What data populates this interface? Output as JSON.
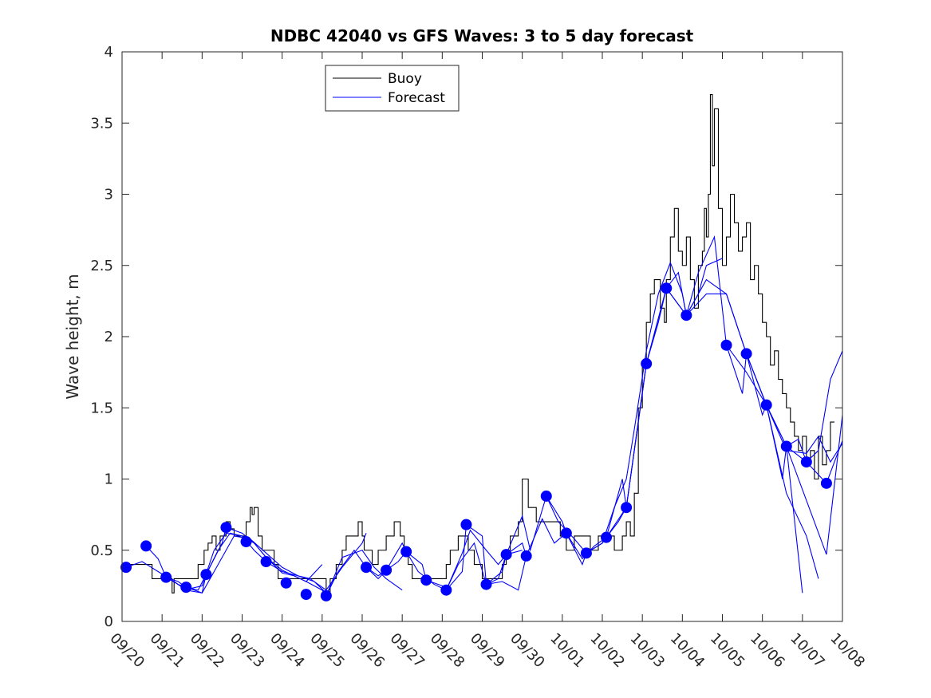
{
  "chart_data": {
    "type": "line",
    "title": "NDBC 42040 vs GFS Waves: 3 to 5 day forecast",
    "xlabel": "",
    "ylabel": "Wave height, m",
    "xlim_days": [
      0,
      18
    ],
    "ylim": [
      0,
      4
    ],
    "yticks": [
      0,
      0.5,
      1,
      1.5,
      2,
      2.5,
      3,
      3.5,
      4
    ],
    "ytick_labels": [
      "0",
      "0.5",
      "1",
      "1.5",
      "2",
      "2.5",
      "3",
      "3.5",
      "4"
    ],
    "xtick_labels": [
      "09/20",
      "09/21",
      "09/22",
      "09/23",
      "09/24",
      "09/25",
      "09/26",
      "09/27",
      "09/28",
      "09/29",
      "09/30",
      "10/01",
      "10/02",
      "10/03",
      "10/04",
      "10/05",
      "10/06",
      "10/07",
      "10/08"
    ],
    "grid": false,
    "legend": {
      "position": "top-center-left",
      "entries": [
        {
          "label": "Buoy",
          "color": "#000000"
        },
        {
          "label": "Forecast",
          "color": "#0000ff"
        }
      ]
    },
    "series": [
      {
        "name": "Buoy",
        "color": "#000000",
        "style": "stairs",
        "x_days": [
          0,
          0.6,
          0.75,
          1.2,
          1.25,
          1.3,
          1.5,
          1.9,
          2.05,
          2.15,
          2.25,
          2.35,
          2.45,
          2.6,
          2.7,
          2.8,
          2.9,
          3.0,
          3.1,
          3.2,
          3.25,
          3.3,
          3.4,
          3.5,
          3.6,
          3.8,
          3.9,
          4.1,
          4.3,
          4.6,
          4.8,
          5.0,
          5.1,
          5.2,
          5.35,
          5.5,
          5.6,
          5.8,
          5.9,
          6.0,
          6.05,
          6.1,
          6.25,
          6.4,
          6.6,
          6.8,
          6.95,
          7.05,
          7.15,
          7.25,
          7.4,
          7.6,
          7.8,
          8.0,
          8.1,
          8.2,
          8.4,
          8.5,
          8.65,
          8.8,
          9.0,
          9.2,
          9.4,
          9.5,
          9.6,
          9.7,
          9.8,
          9.9,
          10.0,
          10.15,
          10.35,
          10.55,
          10.75,
          10.95,
          11.1,
          11.3,
          11.5,
          11.7,
          11.9,
          12.1,
          12.3,
          12.5,
          12.6,
          12.7,
          12.8,
          12.9,
          13.0,
          13.1,
          13.2,
          13.3,
          13.45,
          13.55,
          13.6,
          13.7,
          13.8,
          13.9,
          14.0,
          14.1,
          14.2,
          14.3,
          14.4,
          14.5,
          14.55,
          14.6,
          14.65,
          14.7,
          14.75,
          14.8,
          14.9,
          15.0,
          15.1,
          15.2,
          15.3,
          15.4,
          15.5,
          15.6,
          15.7,
          15.8,
          15.9,
          16.0,
          16.1,
          16.2,
          16.3,
          16.4,
          16.5,
          16.6,
          16.7,
          16.8,
          16.9,
          17.0,
          17.1,
          17.2,
          17.3,
          17.4,
          17.5,
          17.6,
          17.7
        ],
        "values": [
          0.4,
          0.4,
          0.3,
          0.3,
          0.2,
          0.3,
          0.3,
          0.4,
          0.5,
          0.55,
          0.6,
          0.5,
          0.6,
          0.7,
          0.65,
          0.6,
          0.6,
          0.6,
          0.7,
          0.8,
          0.75,
          0.8,
          0.6,
          0.5,
          0.5,
          0.4,
          0.3,
          0.3,
          0.3,
          0.3,
          0.3,
          0.3,
          0.2,
          0.3,
          0.4,
          0.5,
          0.6,
          0.6,
          0.7,
          0.6,
          0.5,
          0.5,
          0.4,
          0.5,
          0.6,
          0.7,
          0.6,
          0.5,
          0.4,
          0.3,
          0.3,
          0.3,
          0.3,
          0.3,
          0.4,
          0.5,
          0.6,
          0.6,
          0.5,
          0.4,
          0.3,
          0.3,
          0.3,
          0.4,
          0.5,
          0.6,
          0.6,
          0.7,
          1.0,
          0.8,
          0.7,
          0.7,
          0.7,
          0.6,
          0.5,
          0.6,
          0.6,
          0.5,
          0.6,
          0.6,
          0.5,
          0.6,
          0.7,
          0.6,
          0.9,
          1.5,
          1.8,
          2.1,
          2.3,
          2.4,
          2.2,
          2.1,
          2.4,
          2.7,
          2.9,
          2.6,
          2.5,
          2.7,
          2.4,
          2.2,
          2.5,
          2.6,
          2.9,
          2.7,
          3.0,
          3.7,
          3.2,
          3.6,
          2.9,
          2.5,
          2.7,
          3.0,
          2.8,
          2.6,
          2.7,
          2.8,
          2.4,
          2.5,
          2.3,
          2.1,
          2.0,
          1.8,
          1.9,
          1.7,
          1.6,
          1.5,
          1.4,
          1.3,
          1.2,
          1.3,
          1.1,
          1.2,
          1.0,
          1.3,
          1.1,
          1.2,
          1.4
        ]
      },
      {
        "name": "Forecast",
        "color": "#0000ff",
        "style": "lines",
        "runs": [
          {
            "x_days": [
              0.1,
              0.5,
              0.9,
              1.3,
              1.6,
              2.0,
              2.4,
              2.8,
              3.2,
              3.6,
              4.0,
              4.4,
              4.8,
              5.1
            ],
            "values": [
              0.38,
              0.42,
              0.35,
              0.28,
              0.22,
              0.2,
              0.4,
              0.6,
              0.58,
              0.48,
              0.38,
              0.32,
              0.28,
              0.2
            ]
          },
          {
            "x_days": [
              0.6,
              0.9,
              1.1,
              1.4,
              1.7,
              2.0,
              2.3,
              2.6,
              3.0,
              3.3,
              3.6,
              4.0,
              4.3,
              4.6,
              5.0
            ],
            "values": [
              0.53,
              0.44,
              0.31,
              0.26,
              0.23,
              0.25,
              0.5,
              0.62,
              0.6,
              0.55,
              0.45,
              0.36,
              0.32,
              0.28,
              0.4
            ]
          },
          {
            "x_days": [
              1.1,
              1.4,
              1.6,
              1.9,
              2.1,
              2.4,
              2.7,
              3.0,
              3.3,
              3.6,
              4.0,
              4.4,
              4.7,
              5.1,
              5.5,
              6.0,
              6.1
            ],
            "values": [
              0.31,
              0.28,
              0.24,
              0.22,
              0.33,
              0.5,
              0.62,
              0.6,
              0.5,
              0.42,
              0.35,
              0.32,
              0.3,
              0.22,
              0.38,
              0.55,
              0.62
            ]
          },
          {
            "x_days": [
              1.6,
              2.0,
              2.1,
              2.5,
              2.6,
              3.0,
              3.3,
              3.6,
              4.0,
              4.3,
              4.6,
              5.0,
              5.1,
              5.5,
              6.0,
              6.3,
              6.6,
              7.0
            ],
            "values": [
              0.24,
              0.2,
              0.33,
              0.55,
              0.66,
              0.62,
              0.55,
              0.45,
              0.34,
              0.32,
              0.28,
              0.22,
              0.18,
              0.45,
              0.5,
              0.38,
              0.3,
              0.22
            ]
          },
          {
            "x_days": [
              5.1,
              5.4,
              5.8,
              6.1,
              6.4,
              6.6,
              7.0,
              7.1,
              7.4,
              7.8,
              8.1,
              8.4,
              8.8,
              9.1,
              9.4,
              9.6,
              10.0
            ],
            "values": [
              0.18,
              0.35,
              0.5,
              0.38,
              0.3,
              0.36,
              0.55,
              0.49,
              0.35,
              0.26,
              0.22,
              0.4,
              0.55,
              0.26,
              0.3,
              0.47,
              0.5
            ]
          },
          {
            "x_days": [
              6.1,
              6.4,
              6.6,
              6.9,
              7.1,
              7.5,
              7.6,
              8.0,
              8.1,
              8.5,
              8.6,
              9.0,
              9.1,
              9.5,
              9.6,
              10.0,
              10.1
            ],
            "values": [
              0.38,
              0.32,
              0.36,
              0.42,
              0.49,
              0.4,
              0.29,
              0.25,
              0.22,
              0.35,
              0.68,
              0.6,
              0.26,
              0.35,
              0.47,
              0.55,
              0.46
            ]
          },
          {
            "x_days": [
              8.1,
              8.5,
              8.7,
              9.1,
              9.4,
              9.6,
              10.0,
              10.2,
              10.6,
              11.0,
              11.1,
              11.5,
              11.6,
              12.0,
              12.1,
              12.5,
              12.6,
              13.1
            ],
            "values": [
              0.22,
              0.48,
              0.64,
              0.5,
              0.4,
              0.47,
              0.74,
              0.5,
              0.88,
              0.7,
              0.62,
              0.4,
              0.48,
              0.55,
              0.59,
              1.0,
              0.8,
              1.81
            ]
          },
          {
            "x_days": [
              9.1,
              9.5,
              9.9,
              10.1,
              10.5,
              10.8,
              11.1,
              11.5,
              11.8,
              12.1,
              12.4,
              12.6,
              13.0,
              13.1,
              13.4,
              13.6,
              13.9,
              14.1,
              14.4,
              14.6,
              15.0
            ],
            "values": [
              0.26,
              0.28,
              0.22,
              0.46,
              0.72,
              0.55,
              0.62,
              0.44,
              0.53,
              0.59,
              0.7,
              0.8,
              1.6,
              1.81,
              2.1,
              2.34,
              2.45,
              2.15,
              2.3,
              2.5,
              2.55
            ]
          },
          {
            "x_days": [
              10.6,
              10.9,
              11.3,
              11.6,
              12.0,
              12.3,
              12.6,
              12.8,
              13.1,
              13.4,
              13.7,
              14.0,
              14.1,
              14.4,
              14.8,
              15.1,
              15.5,
              15.6,
              16.0,
              16.1,
              16.5,
              16.6,
              17.0
            ],
            "values": [
              0.88,
              0.7,
              0.58,
              0.48,
              0.55,
              0.8,
              1.0,
              1.35,
              1.9,
              2.3,
              2.52,
              2.3,
              2.15,
              2.45,
              2.7,
              1.94,
              1.6,
              1.88,
              1.45,
              1.52,
              1.0,
              1.23,
              0.2
            ]
          },
          {
            "x_days": [
              12.1,
              12.6,
              13.1,
              13.6,
              14.1,
              14.6,
              15.1,
              15.6,
              16.1,
              16.6,
              17.1,
              17.4
            ],
            "values": [
              0.59,
              0.8,
              1.81,
              2.34,
              2.15,
              2.4,
              2.3,
              1.88,
              1.52,
              0.9,
              0.6,
              0.3
            ]
          },
          {
            "x_days": [
              13.1,
              13.6,
              14.1,
              14.6,
              15.1,
              15.6,
              16.1,
              16.6,
              17.1,
              17.6,
              18.0
            ],
            "values": [
              1.81,
              2.34,
              2.15,
              2.3,
              2.3,
              1.88,
              1.52,
              1.23,
              0.85,
              0.47,
              1.45
            ]
          },
          {
            "x_days": [
              15.1,
              15.6,
              16.1,
              16.6,
              17.1,
              17.4,
              17.7,
              18.0
            ],
            "values": [
              1.94,
              1.75,
              1.52,
              1.2,
              1.18,
              1.3,
              1.12,
              1.25
            ]
          },
          {
            "x_days": [
              15.6,
              16.1,
              16.6,
              16.9,
              17.1,
              17.4,
              17.7,
              18.0
            ],
            "values": [
              1.88,
              1.52,
              1.23,
              1.28,
              1.12,
              1.2,
              1.7,
              1.9
            ]
          },
          {
            "x_days": [
              16.6,
              17.1,
              17.6,
              18.0
            ],
            "values": [
              1.23,
              1.12,
              0.97,
              1.27
            ]
          }
        ],
        "markers": {
          "x_days": [
            0.1,
            0.6,
            1.1,
            1.6,
            2.1,
            2.6,
            3.1,
            3.6,
            4.1,
            4.6,
            5.1,
            6.1,
            6.6,
            7.1,
            7.6,
            8.1,
            8.6,
            9.1,
            9.6,
            10.1,
            10.6,
            11.1,
            11.6,
            12.1,
            12.6,
            13.1,
            13.6,
            14.1,
            15.1,
            15.6,
            16.1,
            16.6,
            17.1,
            17.6
          ],
          "values": [
            0.38,
            0.53,
            0.31,
            0.24,
            0.33,
            0.66,
            0.56,
            0.42,
            0.27,
            0.19,
            0.18,
            0.38,
            0.36,
            0.49,
            0.29,
            0.22,
            0.68,
            0.26,
            0.47,
            0.46,
            0.88,
            0.62,
            0.48,
            0.59,
            0.8,
            1.81,
            2.34,
            2.15,
            1.94,
            1.88,
            1.52,
            1.23,
            1.12,
            0.97
          ]
        }
      }
    ]
  }
}
